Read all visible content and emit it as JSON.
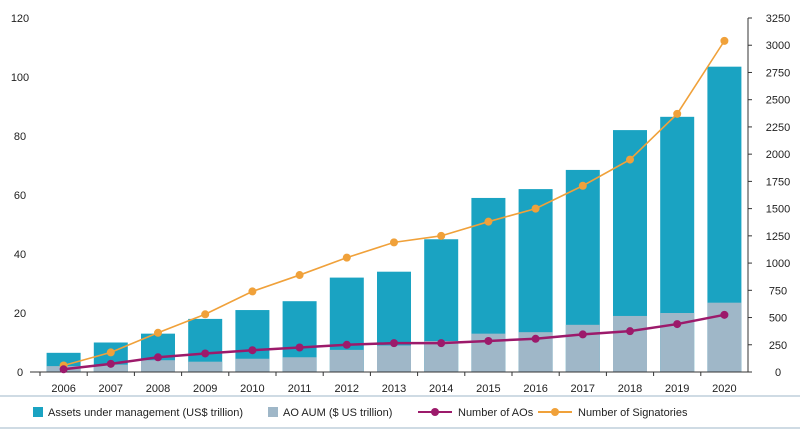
{
  "chart_data": {
    "type": "bar",
    "categories": [
      "2006",
      "2007",
      "2008",
      "2009",
      "2010",
      "2011",
      "2012",
      "2013",
      "2014",
      "2015",
      "2016",
      "2017",
      "2018",
      "2019",
      "2020"
    ],
    "bar_series": [
      {
        "name": "Assets under management (US$ trillion)",
        "color": "#1aa3c2",
        "values": [
          6.5,
          10,
          13,
          18,
          21,
          24,
          32,
          34,
          45,
          59,
          62,
          68.5,
          82,
          86.5,
          103.5
        ]
      },
      {
        "name": "AO AUM ($ US trillion)",
        "color": "#9fb7c8",
        "values": [
          2,
          2.5,
          4,
          3.5,
          4.5,
          5,
          7.5,
          9,
          10.5,
          13,
          13.5,
          16,
          19,
          20,
          23.5
        ]
      }
    ],
    "line_series": [
      {
        "name": "Number of AOs",
        "color": "#9c1a6b",
        "values": [
          25,
          75,
          135,
          170,
          200,
          225,
          250,
          265,
          265,
          285,
          305,
          345,
          375,
          440,
          525
        ]
      },
      {
        "name": "Number of Signatories",
        "color": "#f0a13a",
        "values": [
          60,
          180,
          360,
          530,
          740,
          890,
          1050,
          1190,
          1250,
          1380,
          1500,
          1710,
          1950,
          2370,
          3040
        ]
      }
    ],
    "y_left": {
      "min": 0,
      "max": 120,
      "ticks": [
        "0",
        "20",
        "40",
        "60",
        "80",
        "100",
        "120"
      ]
    },
    "y_right": {
      "min": 0,
      "max": 3250,
      "ticks": [
        "0",
        "250",
        "500",
        "750",
        "1000",
        "1250",
        "1500",
        "1750",
        "2000",
        "2250",
        "2500",
        "2750",
        "3000",
        "3250"
      ]
    },
    "legend_position": "bottom",
    "grid": false
  }
}
